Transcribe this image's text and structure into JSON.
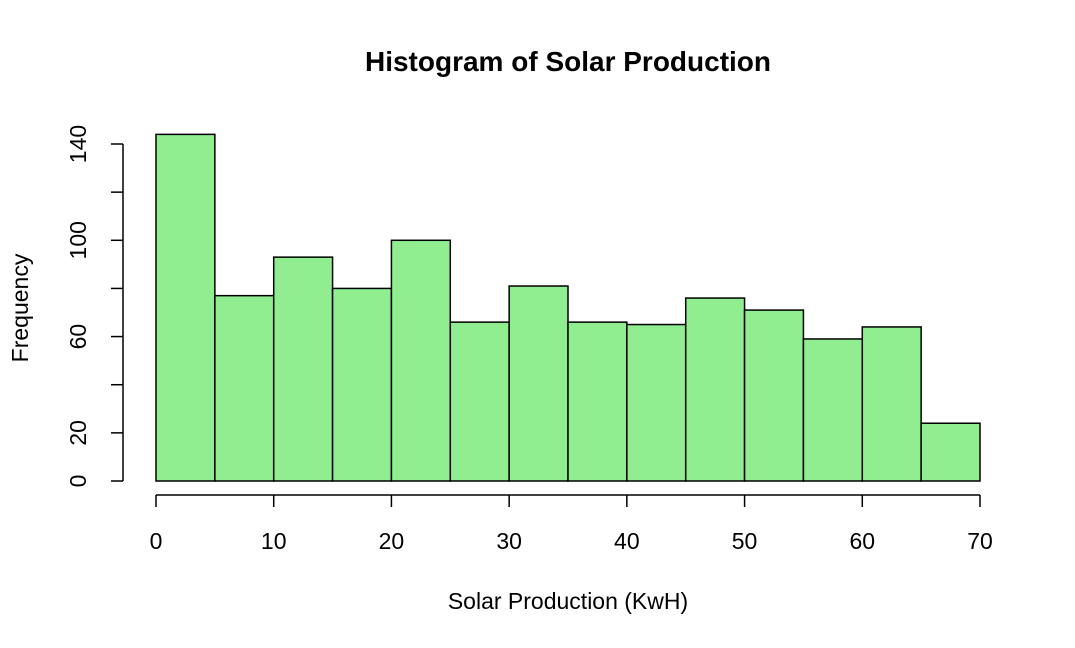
{
  "chart_data": {
    "type": "bar",
    "subtype": "histogram",
    "title": "Histogram of Solar Production",
    "xlabel": "Solar Production (KwH)",
    "ylabel": "Frequency",
    "bins": [
      {
        "start": 0,
        "end": 5,
        "count": 144
      },
      {
        "start": 5,
        "end": 10,
        "count": 77
      },
      {
        "start": 10,
        "end": 15,
        "count": 93
      },
      {
        "start": 15,
        "end": 20,
        "count": 80
      },
      {
        "start": 20,
        "end": 25,
        "count": 100
      },
      {
        "start": 25,
        "end": 30,
        "count": 66
      },
      {
        "start": 30,
        "end": 35,
        "count": 81
      },
      {
        "start": 35,
        "end": 40,
        "count": 66
      },
      {
        "start": 40,
        "end": 45,
        "count": 65
      },
      {
        "start": 45,
        "end": 50,
        "count": 76
      },
      {
        "start": 50,
        "end": 55,
        "count": 71
      },
      {
        "start": 55,
        "end": 60,
        "count": 59
      },
      {
        "start": 60,
        "end": 65,
        "count": 64
      },
      {
        "start": 65,
        "end": 70,
        "count": 24
      }
    ],
    "xlim": [
      0,
      70
    ],
    "ylim": [
      0,
      140
    ],
    "x_ticks": [
      0,
      10,
      20,
      30,
      40,
      50,
      60,
      70
    ],
    "y_ticks": [
      0,
      20,
      40,
      60,
      80,
      100,
      120,
      140
    ],
    "y_tick_labels": [
      "0",
      "20",
      "",
      "60",
      "",
      "100",
      "",
      "140"
    ],
    "bar_color": "#90EE90",
    "edge_color": "#000000",
    "grid": false
  }
}
